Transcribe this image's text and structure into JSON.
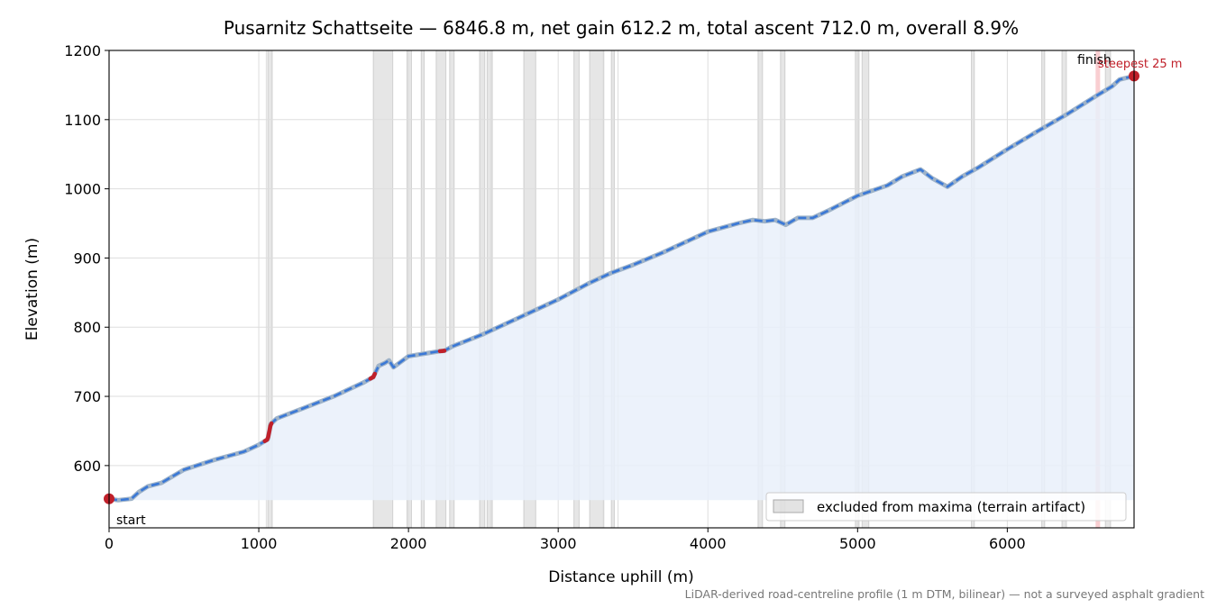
{
  "chart_data": {
    "type": "line",
    "title": "Pusarnitz Schattseite — 6846.8 m, net gain 612.2 m, total ascent 712.0 m, overall 8.9%",
    "xlabel": "Distance uphill (m)",
    "ylabel": "Elevation (m)",
    "xlim": [
      0,
      6846.8
    ],
    "ylim": [
      510,
      1200
    ],
    "xticks": [
      0,
      1000,
      2000,
      3000,
      4000,
      5000,
      6000
    ],
    "yticks": [
      600,
      700,
      800,
      900,
      1000,
      1100,
      1200
    ],
    "grid": true,
    "fill_baseline": 550,
    "series": [
      {
        "values_x": [
          0,
          60,
          150,
          200,
          260,
          350,
          500,
          700,
          900,
          1000,
          1060,
          1080,
          1120,
          1300,
          1500,
          1700,
          1765,
          1800,
          1840,
          1870,
          1900,
          2000,
          2200,
          2240,
          2290,
          2500,
          2700,
          2900,
          3000,
          3200,
          3350,
          3500,
          3700,
          4000,
          4200,
          4300,
          4380,
          4450,
          4520,
          4600,
          4700,
          4800,
          5000,
          5200,
          5300,
          5420,
          5500,
          5600,
          5700,
          5800,
          6000,
          6200,
          6400,
          6600,
          6700,
          6750,
          6846.8
        ],
        "values_y": [
          552,
          550,
          552,
          562,
          570,
          575,
          594,
          608,
          620,
          630,
          638,
          660,
          668,
          683,
          700,
          720,
          728,
          744,
          748,
          752,
          742,
          758,
          765,
          766,
          772,
          790,
          810,
          830,
          840,
          863,
          878,
          890,
          908,
          938,
          950,
          955,
          953,
          955,
          948,
          958,
          958,
          968,
          990,
          1005,
          1018,
          1028,
          1015,
          1003,
          1018,
          1030,
          1057,
          1083,
          1108,
          1135,
          1148,
          1158,
          1163
        ]
      }
    ],
    "steep_segments_x": [
      [
        1040,
        1085
      ],
      [
        1745,
        1775
      ],
      [
        2210,
        2240
      ]
    ],
    "excluded_bands_x": [
      [
        1060,
        1090
      ],
      [
        1765,
        1895
      ],
      [
        1990,
        2020
      ],
      [
        2085,
        2105
      ],
      [
        2185,
        2250
      ],
      [
        2275,
        2305
      ],
      [
        2475,
        2510
      ],
      [
        2525,
        2560
      ],
      [
        2770,
        2850
      ],
      [
        3105,
        3140
      ],
      [
        3210,
        3305
      ],
      [
        3355,
        3375
      ],
      [
        4335,
        4365
      ],
      [
        4485,
        4515
      ],
      [
        4985,
        5010
      ],
      [
        5030,
        5075
      ],
      [
        5760,
        5780
      ],
      [
        6230,
        6250
      ],
      [
        6365,
        6395
      ],
      [
        6655,
        6690
      ]
    ],
    "thin_gridlines_x": [
      1000,
      2000,
      3000,
      4000,
      5000,
      6000,
      1050,
      2550,
      3300,
      3400
    ],
    "steepest_window_x": [
      6590,
      6620
    ],
    "annotations": {
      "start": "start",
      "finish": "finish",
      "steepest": "steepest 25 m"
    },
    "legend": {
      "placement": "lower-right",
      "label": "excluded from maxima (terrain artifact)"
    },
    "footnote": "LiDAR-derived road-centreline profile (1 m DTM, bilinear) — not a surveyed asphalt gradient",
    "colors": {
      "line": "#3a78d6",
      "line_outline": "#9fb3c8",
      "steep": "#c0202a",
      "fill": "#e9f0fa",
      "band": "#b0b0b0",
      "grid": "#dddddd",
      "marker": "#c0202a",
      "orange": "#e08a1e"
    }
  }
}
